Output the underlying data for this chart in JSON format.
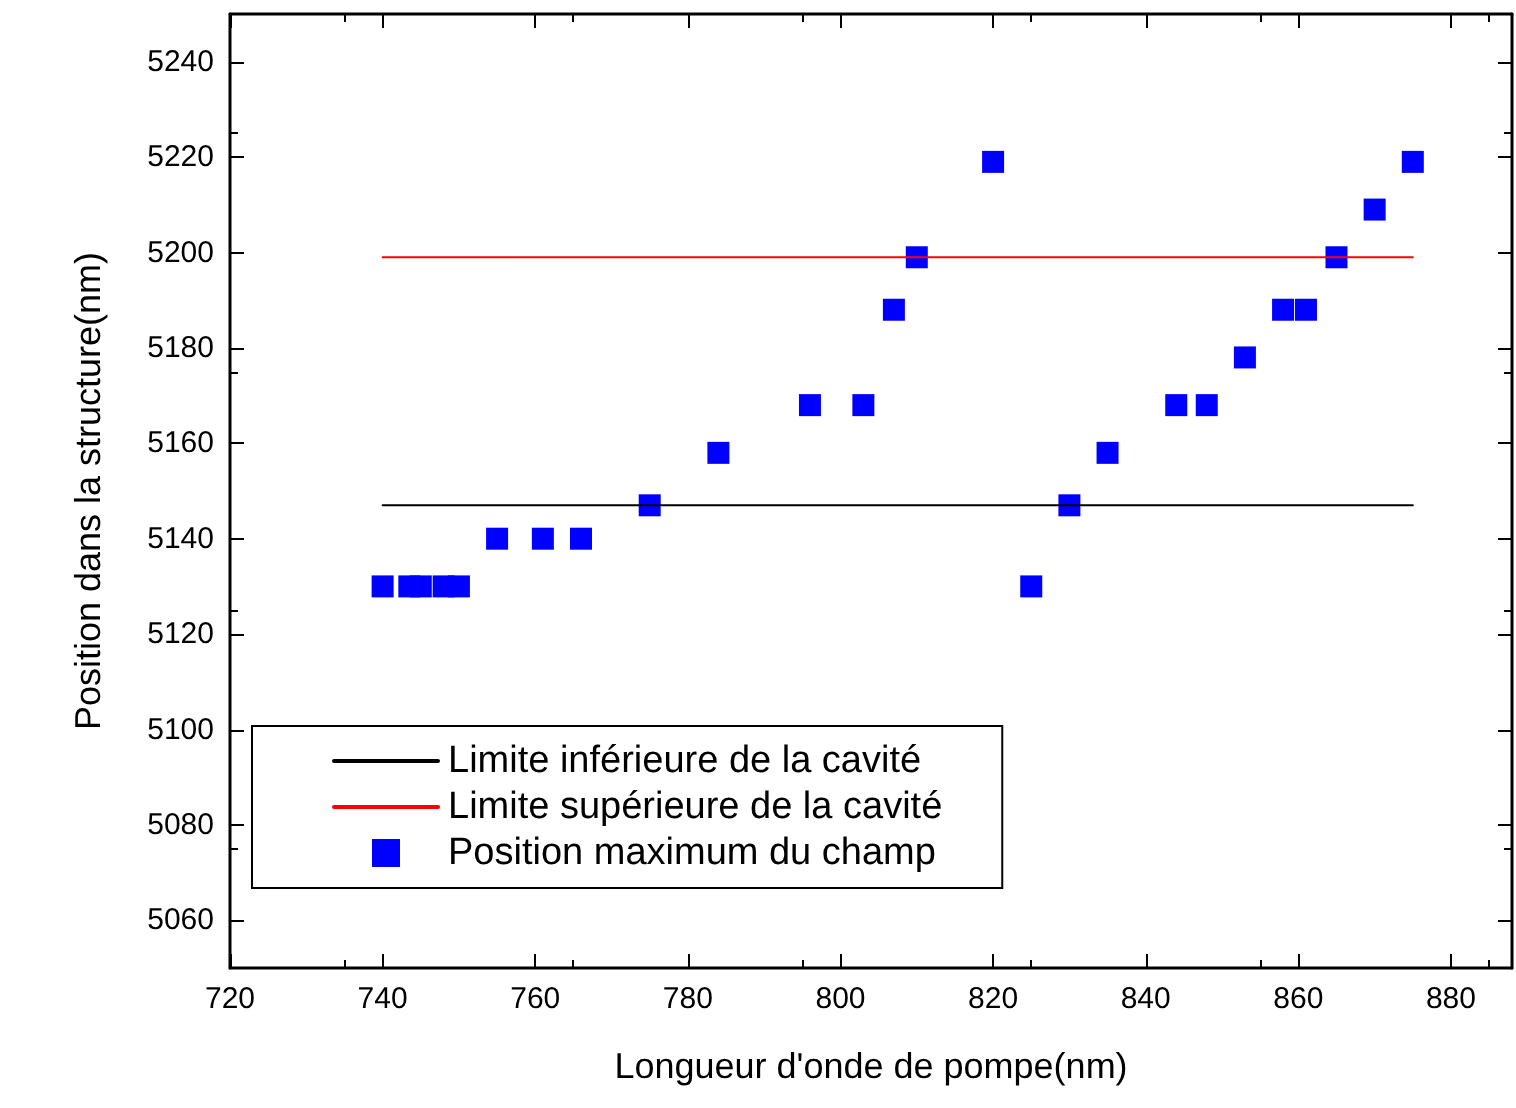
{
  "chart_data": {
    "type": "scatter",
    "xlabel": "Longueur d'onde de pompe(nm)",
    "ylabel": "Position dans la structure(nm)",
    "xlim": [
      720,
      888
    ],
    "xticks": [
      720,
      740,
      760,
      780,
      800,
      820,
      840,
      860,
      880
    ],
    "ylim": [
      5050,
      5250
    ],
    "yticks": [
      5060,
      5080,
      5100,
      5120,
      5140,
      5160,
      5180,
      5200,
      5220,
      5240
    ],
    "grid": false,
    "legend": "bottom left",
    "series": [
      {
        "name": "Limite inférieure de la cavité",
        "type": "line",
        "color": "#000000",
        "marker": "none",
        "line_style": "solid",
        "x": [
          740,
          875
        ],
        "values": [
          5147,
          5147
        ]
      },
      {
        "name": "Limite supérieure de la cavité",
        "type": "line",
        "color": "#ff0000",
        "marker": "none",
        "line_style": "solid",
        "x": [
          740,
          875
        ],
        "values": [
          5199,
          5199
        ]
      },
      {
        "name": "Position maximum du champ",
        "color": "#0000ff",
        "marker": "square",
        "x": [
          740,
          743.5,
          745,
          748,
          750,
          755,
          761,
          766,
          775,
          784,
          796,
          803,
          807,
          810,
          820,
          825,
          830,
          835,
          844,
          848,
          853,
          858,
          861,
          865,
          870,
          875
        ],
        "values": [
          5130,
          5130,
          5130,
          5130,
          5130,
          5140,
          5140,
          5140,
          5147,
          5158,
          5168,
          5168,
          5188,
          5199,
          5219,
          5130,
          5147,
          5158,
          5168,
          5168,
          5178,
          5188,
          5188,
          5199,
          5209,
          5219
        ]
      }
    ]
  }
}
